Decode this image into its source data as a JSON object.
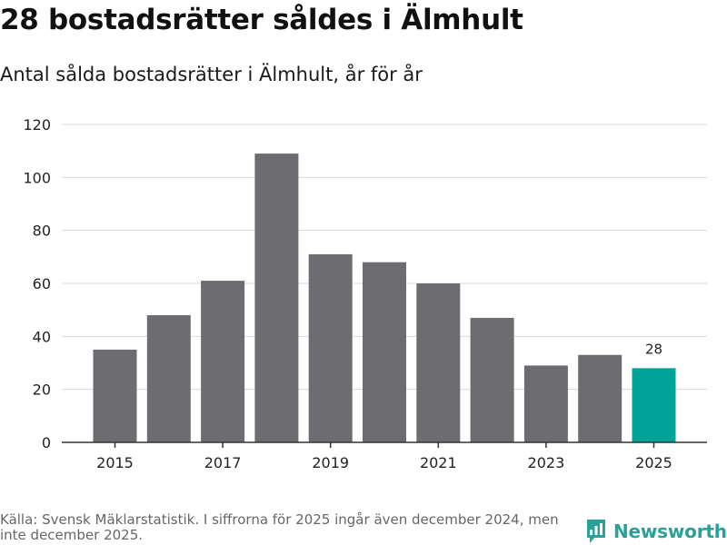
{
  "header": {
    "title": "28 bostadsrätter såldes i Älmhult",
    "subtitle": "Antal sålda bostadsrätter i Älmhult, år för år"
  },
  "footer": {
    "source": "Källa: Svensk Mäklarstatistik. I siffrorna för 2025 ingår även december 2024, men inte december 2025.",
    "brand": "Newsworthy"
  },
  "colors": {
    "bar": "#6d6c71",
    "highlight": "#00a398",
    "grid": "#d9d9d9",
    "axis": "#333333",
    "brand": "#2aa198"
  },
  "chart_data": {
    "type": "bar",
    "title": "28 bostadsrätter såldes i Älmhult",
    "subtitle": "Antal sålda bostadsrätter i Älmhult, år för år",
    "xlabel": "",
    "ylabel": "",
    "categories": [
      "2015",
      "2016",
      "2017",
      "2018",
      "2019",
      "2020",
      "2021",
      "2022",
      "2023",
      "2024",
      "2025"
    ],
    "values": [
      35,
      48,
      61,
      109,
      71,
      68,
      60,
      47,
      29,
      33,
      28
    ],
    "highlight_index": 10,
    "value_labels": [
      {
        "index": 10,
        "text": "28"
      }
    ],
    "x_tick_labels": [
      "2015",
      "2017",
      "2019",
      "2021",
      "2023",
      "2025"
    ],
    "y_ticks": [
      0,
      20,
      40,
      60,
      80,
      100,
      120
    ],
    "ylim": [
      0,
      120
    ],
    "grid": true
  }
}
